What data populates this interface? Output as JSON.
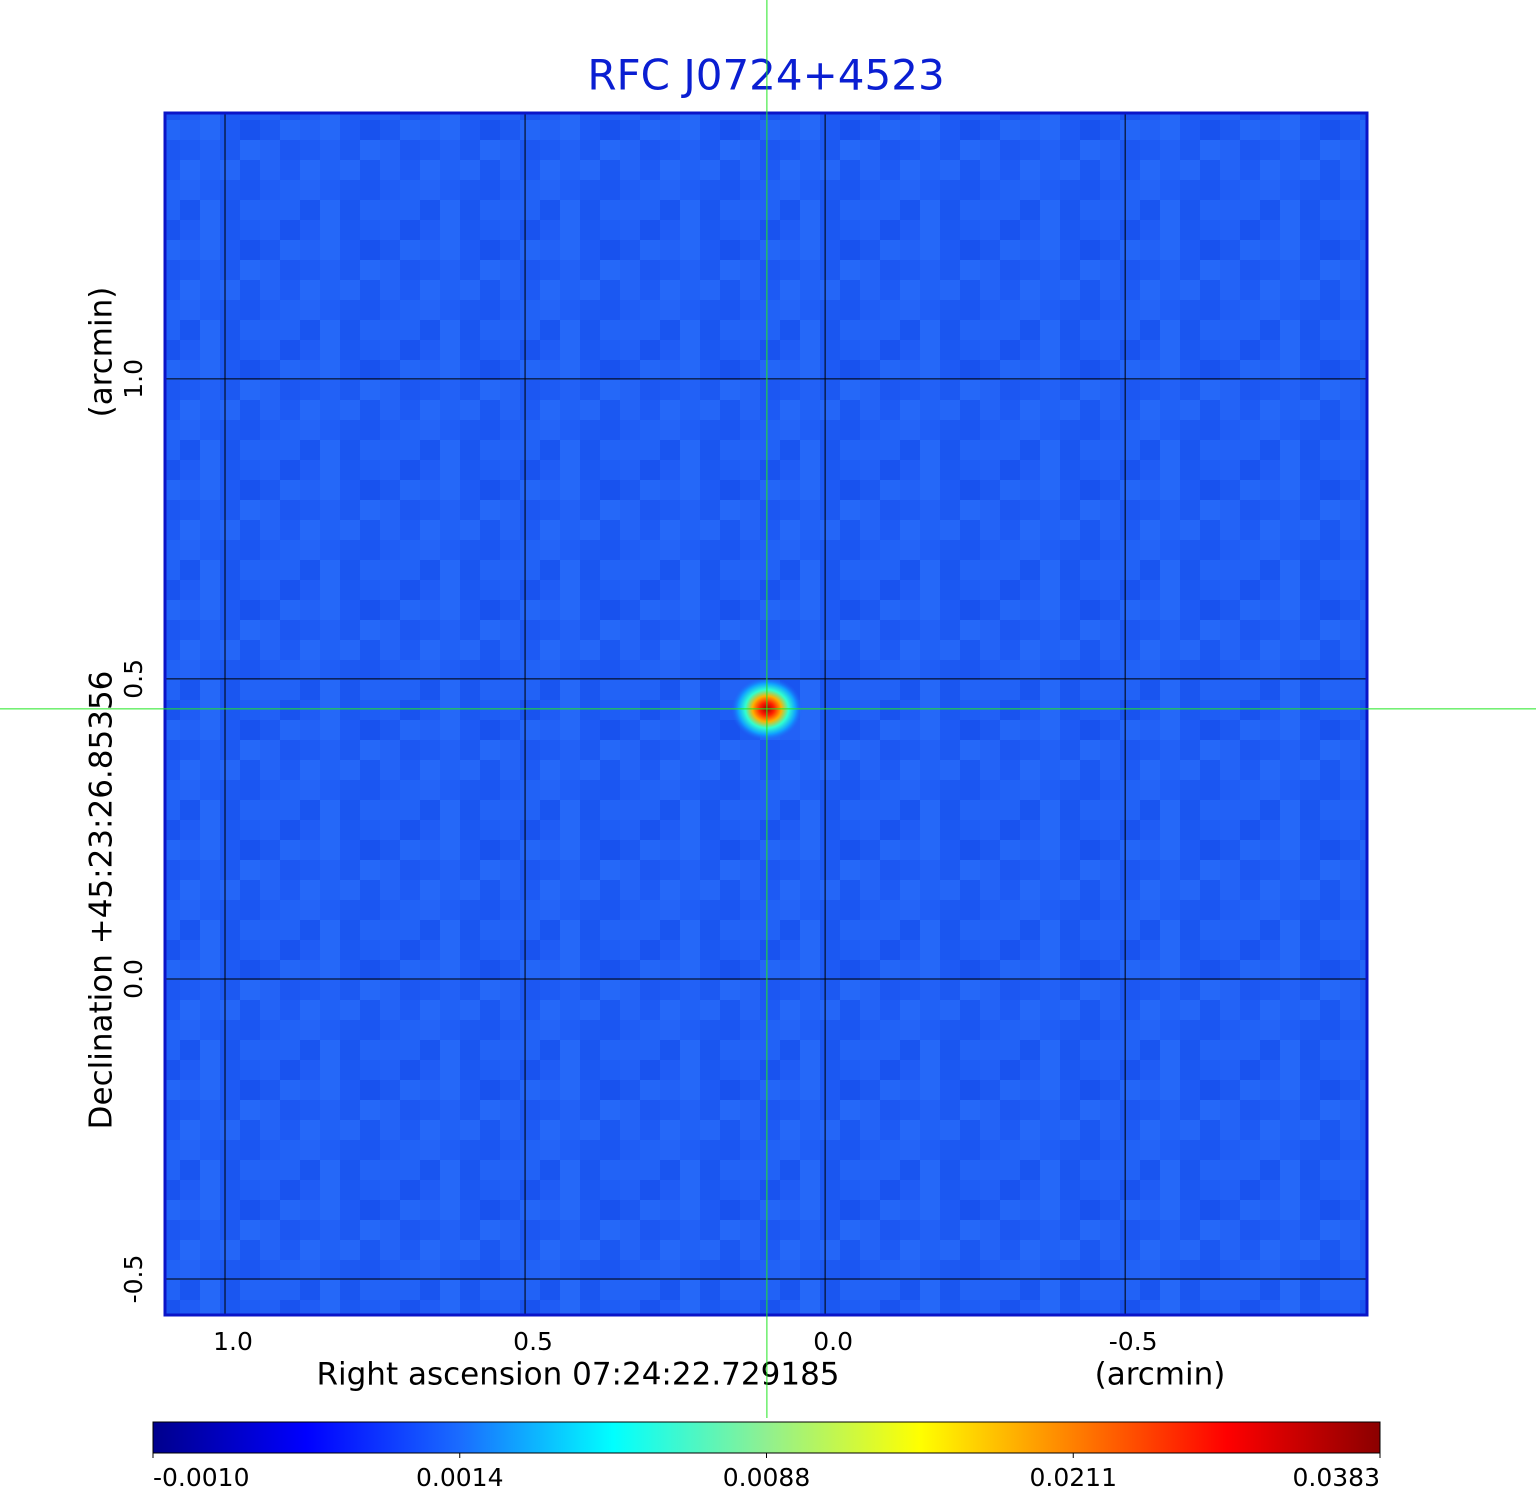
{
  "chart_data": {
    "type": "image",
    "title": "RFC J0724+4523",
    "title_color": "#0a1ed2",
    "frame_color": "#0a14c8",
    "x_label": "Right ascension  07:24:22.729185",
    "x_unit": "(arcmin)",
    "y_label": "Declination  +45:23:26.85356",
    "y_unit": "(arcmin)",
    "xlim": [
      1.1,
      -0.903
    ],
    "ylim": [
      -0.56,
      1.443
    ],
    "xticks": [
      {
        "value": 1.0,
        "label": "1.0"
      },
      {
        "value": 0.5,
        "label": "0.5"
      },
      {
        "value": 0.0,
        "label": "0.0"
      },
      {
        "value": -0.5,
        "label": "-0.5"
      }
    ],
    "yticks": [
      {
        "value": 1.0,
        "label": "1.0"
      },
      {
        "value": 0.5,
        "label": "0.5"
      },
      {
        "value": 0.0,
        "label": "0.0"
      },
      {
        "value": -0.5,
        "label": "-0.5"
      }
    ],
    "grid": true,
    "background_color": "#1e5cf5",
    "crosshair": {
      "x": 0.097,
      "y": 0.45,
      "color": "#22e622"
    },
    "source": {
      "x": 0.097,
      "y": 0.45
    },
    "colorbar": {
      "colors": [
        "#00008c",
        "#0000ff",
        "#1a6cff",
        "#00ffff",
        "#90f090",
        "#ffff00",
        "#ff8000",
        "#ff0000",
        "#8b0000"
      ],
      "ticks": [
        {
          "value": -0.001,
          "label": "-0.0010"
        },
        {
          "value": 0.0014,
          "label": "0.0014"
        },
        {
          "value": 0.0088,
          "label": "0.0088"
        },
        {
          "value": 0.0211,
          "label": "0.0211"
        },
        {
          "value": 0.0383,
          "label": "0.0383"
        }
      ]
    }
  }
}
